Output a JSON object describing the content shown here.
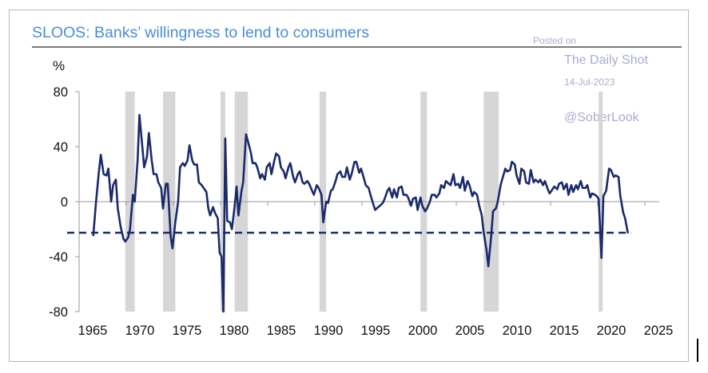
{
  "chart_data": {
    "type": "line",
    "title": "SLOOS: Banks’ willingness to lend to consumers",
    "ylabel": "%",
    "xlabel": "",
    "xlim": [
      1965,
      2025
    ],
    "ylim": [
      -80,
      80
    ],
    "x_ticks": [
      "1965",
      "1970",
      "1975",
      "1980",
      "1985",
      "1990",
      "1995",
      "2000",
      "2005",
      "2010",
      "2015",
      "2020",
      "2025"
    ],
    "y_ticks": [
      80,
      40,
      0,
      -40,
      -80
    ],
    "grid": false,
    "legend": "none",
    "colors": {
      "line": "#1b2a6b",
      "recession": "#d6d6d6",
      "axis": "#9a9a9a"
    },
    "recessions": [
      [
        1969.9,
        1970.9
      ],
      [
        1973.9,
        1975.2
      ],
      [
        1980.0,
        1980.5
      ],
      [
        1981.5,
        1982.9
      ],
      [
        1990.5,
        1991.2
      ],
      [
        2001.2,
        2001.9
      ],
      [
        2007.9,
        2009.5
      ],
      [
        2020.1,
        2020.4
      ]
    ],
    "reference_line": {
      "value": -22.6,
      "style": "dashed",
      "from": 1965,
      "to": 2023.5
    },
    "series": [
      {
        "name": "Banks' willingness to lend to consumers",
        "points": [
          [
            1966.5,
            -25
          ],
          [
            1966.8,
            0
          ],
          [
            1967.1,
            22
          ],
          [
            1967.3,
            34
          ],
          [
            1967.6,
            20
          ],
          [
            1967.9,
            19
          ],
          [
            1968.1,
            24
          ],
          [
            1968.4,
            0
          ],
          [
            1968.6,
            12
          ],
          [
            1968.9,
            16
          ],
          [
            1969.1,
            -5
          ],
          [
            1969.4,
            -18
          ],
          [
            1969.7,
            -27
          ],
          [
            1969.9,
            -29
          ],
          [
            1970.2,
            -26
          ],
          [
            1970.4,
            -20
          ],
          [
            1970.7,
            5
          ],
          [
            1970.9,
            0
          ],
          [
            1971.2,
            30
          ],
          [
            1971.4,
            63
          ],
          [
            1971.7,
            40
          ],
          [
            1971.9,
            25
          ],
          [
            1972.2,
            33
          ],
          [
            1972.4,
            50
          ],
          [
            1972.7,
            30
          ],
          [
            1972.9,
            20
          ],
          [
            1973.2,
            20
          ],
          [
            1973.4,
            14
          ],
          [
            1973.7,
            10
          ],
          [
            1973.9,
            -5
          ],
          [
            1974.2,
            13
          ],
          [
            1974.4,
            13
          ],
          [
            1974.7,
            -25
          ],
          [
            1974.9,
            -34
          ],
          [
            1975.2,
            -15
          ],
          [
            1975.5,
            0
          ],
          [
            1975.7,
            25
          ],
          [
            1976.0,
            28
          ],
          [
            1976.2,
            26
          ],
          [
            1976.5,
            30
          ],
          [
            1976.7,
            41
          ],
          [
            1977.0,
            30
          ],
          [
            1977.2,
            27
          ],
          [
            1977.5,
            27
          ],
          [
            1977.7,
            14
          ],
          [
            1978.0,
            12
          ],
          [
            1978.2,
            10
          ],
          [
            1978.5,
            7
          ],
          [
            1978.7,
            -5
          ],
          [
            1978.9,
            -10
          ],
          [
            1979.2,
            -4
          ],
          [
            1979.4,
            -8
          ],
          [
            1979.7,
            -12
          ],
          [
            1979.9,
            -37
          ],
          [
            1980.1,
            -40
          ],
          [
            1980.3,
            -80
          ],
          [
            1980.5,
            46
          ],
          [
            1980.7,
            -14
          ],
          [
            1981.0,
            -15
          ],
          [
            1981.2,
            -20
          ],
          [
            1981.5,
            -3
          ],
          [
            1981.7,
            11
          ],
          [
            1981.9,
            -10
          ],
          [
            1982.2,
            7
          ],
          [
            1982.4,
            14
          ],
          [
            1982.7,
            49
          ],
          [
            1982.9,
            44
          ],
          [
            1983.2,
            36
          ],
          [
            1983.4,
            28
          ],
          [
            1983.7,
            28
          ],
          [
            1983.9,
            25
          ],
          [
            1984.2,
            17
          ],
          [
            1984.4,
            20
          ],
          [
            1984.7,
            16
          ],
          [
            1984.9,
            25
          ],
          [
            1985.2,
            28
          ],
          [
            1985.4,
            20
          ],
          [
            1985.7,
            30
          ],
          [
            1985.9,
            35
          ],
          [
            1986.2,
            33
          ],
          [
            1986.4,
            25
          ],
          [
            1986.7,
            22
          ],
          [
            1986.9,
            17
          ],
          [
            1987.2,
            25
          ],
          [
            1987.4,
            28
          ],
          [
            1987.7,
            18
          ],
          [
            1987.9,
            14
          ],
          [
            1988.2,
            20
          ],
          [
            1988.4,
            22
          ],
          [
            1988.7,
            14
          ],
          [
            1988.9,
            13
          ],
          [
            1989.2,
            15
          ],
          [
            1989.4,
            13
          ],
          [
            1989.7,
            8
          ],
          [
            1989.9,
            5
          ],
          [
            1990.2,
            12
          ],
          [
            1990.4,
            10
          ],
          [
            1990.7,
            5
          ],
          [
            1990.9,
            -15
          ],
          [
            1991.2,
            0
          ],
          [
            1991.4,
            -1
          ],
          [
            1991.7,
            8
          ],
          [
            1991.9,
            9
          ],
          [
            1992.2,
            15
          ],
          [
            1992.4,
            20
          ],
          [
            1992.7,
            22
          ],
          [
            1992.9,
            18
          ],
          [
            1993.2,
            18
          ],
          [
            1993.4,
            25
          ],
          [
            1993.7,
            16
          ],
          [
            1993.9,
            20
          ],
          [
            1994.2,
            29
          ],
          [
            1994.4,
            29
          ],
          [
            1994.7,
            21
          ],
          [
            1994.9,
            24
          ],
          [
            1995.2,
            17
          ],
          [
            1995.4,
            12
          ],
          [
            1995.7,
            10
          ],
          [
            1995.9,
            5
          ],
          [
            1996.2,
            -2
          ],
          [
            1996.4,
            -6
          ],
          [
            1996.7,
            -4
          ],
          [
            1996.9,
            -3
          ],
          [
            1997.2,
            -1
          ],
          [
            1997.4,
            2
          ],
          [
            1997.7,
            8
          ],
          [
            1997.9,
            10
          ],
          [
            1998.2,
            3
          ],
          [
            1998.4,
            9
          ],
          [
            1998.7,
            3
          ],
          [
            1998.9,
            10
          ],
          [
            1999.2,
            11
          ],
          [
            1999.4,
            5
          ],
          [
            1999.7,
            5
          ],
          [
            1999.9,
            3
          ],
          [
            2000.2,
            -3
          ],
          [
            2000.4,
            2
          ],
          [
            2000.7,
            3
          ],
          [
            2000.9,
            -6
          ],
          [
            2001.2,
            3
          ],
          [
            2001.4,
            -3
          ],
          [
            2001.7,
            -7
          ],
          [
            2001.9,
            -5
          ],
          [
            2002.2,
            0
          ],
          [
            2002.4,
            5
          ],
          [
            2002.7,
            5
          ],
          [
            2002.9,
            3
          ],
          [
            2003.2,
            6
          ],
          [
            2003.4,
            12
          ],
          [
            2003.7,
            10
          ],
          [
            2003.9,
            15
          ],
          [
            2004.2,
            13
          ],
          [
            2004.4,
            12
          ],
          [
            2004.7,
            20
          ],
          [
            2004.9,
            12
          ],
          [
            2005.2,
            13
          ],
          [
            2005.4,
            10
          ],
          [
            2005.7,
            18
          ],
          [
            2005.9,
            8
          ],
          [
            2006.2,
            15
          ],
          [
            2006.4,
            12
          ],
          [
            2006.7,
            4
          ],
          [
            2006.9,
            7
          ],
          [
            2007.2,
            5
          ],
          [
            2007.4,
            -2
          ],
          [
            2007.7,
            -10
          ],
          [
            2007.9,
            -22
          ],
          [
            2008.2,
            -35
          ],
          [
            2008.4,
            -47
          ],
          [
            2008.7,
            -25
          ],
          [
            2008.9,
            -7
          ],
          [
            2009.2,
            -5
          ],
          [
            2009.4,
            0
          ],
          [
            2009.7,
            12
          ],
          [
            2009.9,
            17
          ],
          [
            2010.2,
            24
          ],
          [
            2010.4,
            22
          ],
          [
            2010.7,
            23
          ],
          [
            2010.9,
            29
          ],
          [
            2011.2,
            27
          ],
          [
            2011.4,
            19
          ],
          [
            2011.7,
            13
          ],
          [
            2011.9,
            24
          ],
          [
            2012.2,
            22
          ],
          [
            2012.4,
            14
          ],
          [
            2012.7,
            13
          ],
          [
            2012.9,
            23
          ],
          [
            2013.2,
            14
          ],
          [
            2013.4,
            16
          ],
          [
            2013.7,
            14
          ],
          [
            2013.9,
            16
          ],
          [
            2014.2,
            12
          ],
          [
            2014.4,
            15
          ],
          [
            2014.7,
            9
          ],
          [
            2014.9,
            6
          ],
          [
            2015.2,
            9
          ],
          [
            2015.4,
            11
          ],
          [
            2015.7,
            9
          ],
          [
            2015.9,
            13
          ],
          [
            2016.2,
            14
          ],
          [
            2016.4,
            9
          ],
          [
            2016.7,
            13
          ],
          [
            2016.9,
            5
          ],
          [
            2017.2,
            12
          ],
          [
            2017.4,
            7
          ],
          [
            2017.7,
            12
          ],
          [
            2017.9,
            9
          ],
          [
            2018.2,
            15
          ],
          [
            2018.4,
            10
          ],
          [
            2018.7,
            10
          ],
          [
            2018.9,
            12
          ],
          [
            2019.2,
            3
          ],
          [
            2019.4,
            6
          ],
          [
            2019.7,
            5
          ],
          [
            2019.9,
            4
          ],
          [
            2020.1,
            2
          ],
          [
            2020.4,
            -41
          ],
          [
            2020.6,
            4
          ],
          [
            2020.9,
            8
          ],
          [
            2021.2,
            24
          ],
          [
            2021.4,
            23
          ],
          [
            2021.7,
            18
          ],
          [
            2021.9,
            19
          ],
          [
            2022.2,
            18
          ],
          [
            2022.4,
            4
          ],
          [
            2022.7,
            -8
          ],
          [
            2022.9,
            -12
          ],
          [
            2023.2,
            -23
          ]
        ]
      }
    ]
  },
  "watermark": {
    "posted_on": "Posted on",
    "source": "The Daily Shot",
    "date": "14-Jul-2023",
    "handle": "@SoberLook"
  }
}
